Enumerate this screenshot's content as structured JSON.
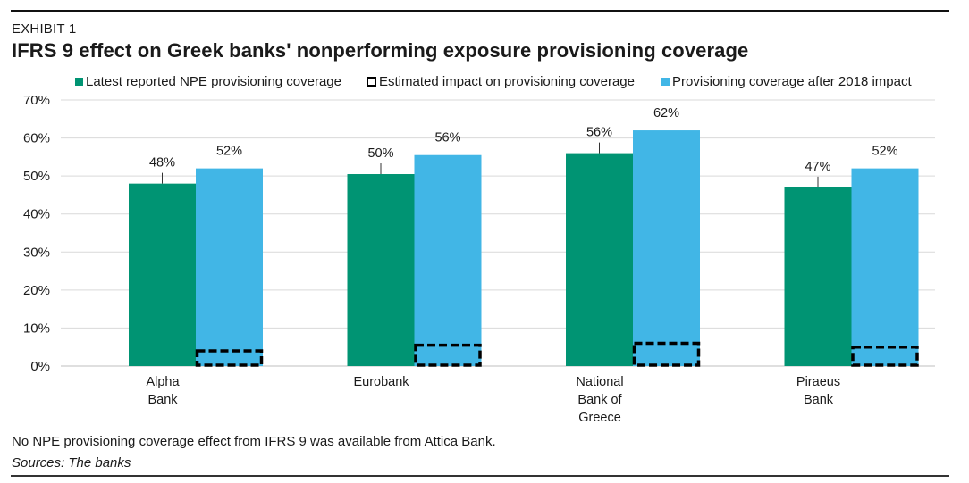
{
  "exhibit_label": "EXHIBIT 1",
  "title": "IFRS 9 effect on Greek banks' nonperforming exposure provisioning coverage",
  "legend": [
    {
      "label": "Latest reported NPE provisioning coverage",
      "color": "#009473",
      "style": "solid"
    },
    {
      "label": "Estimated impact on provisioning coverage",
      "color": "#000000",
      "style": "dashed"
    },
    {
      "label": "Provisioning coverage after 2018 impact",
      "color": "#41B6E6",
      "style": "solid"
    }
  ],
  "note": "No NPE provisioning coverage effect from IFRS 9 was available from Attica Bank.",
  "sources": "Sources: The banks",
  "chart_data": {
    "type": "bar",
    "categories": [
      [
        "Alpha",
        "Bank"
      ],
      [
        "Eurobank"
      ],
      [
        "National",
        "Bank of",
        "Greece"
      ],
      [
        "Piraeus",
        "Bank"
      ]
    ],
    "series": [
      {
        "name": "Latest reported NPE provisioning coverage",
        "values": [
          48,
          50.5,
          56,
          47
        ],
        "labels": [
          "48%",
          "50%",
          "56%",
          "47%"
        ],
        "color": "#009473"
      },
      {
        "name": "Provisioning coverage after 2018 impact",
        "values": [
          52,
          55.5,
          62,
          52
        ],
        "labels": [
          "52%",
          "56%",
          "62%",
          "52%"
        ],
        "color": "#41B6E6"
      }
    ],
    "estimated_impact": {
      "name": "Estimated impact on provisioning coverage",
      "values": [
        4,
        5.5,
        6,
        5
      ]
    },
    "y_ticks": [
      "0%",
      "10%",
      "20%",
      "30%",
      "40%",
      "50%",
      "60%",
      "70%"
    ],
    "ylim": [
      0,
      70
    ],
    "grid": true,
    "legend_position": "top"
  }
}
